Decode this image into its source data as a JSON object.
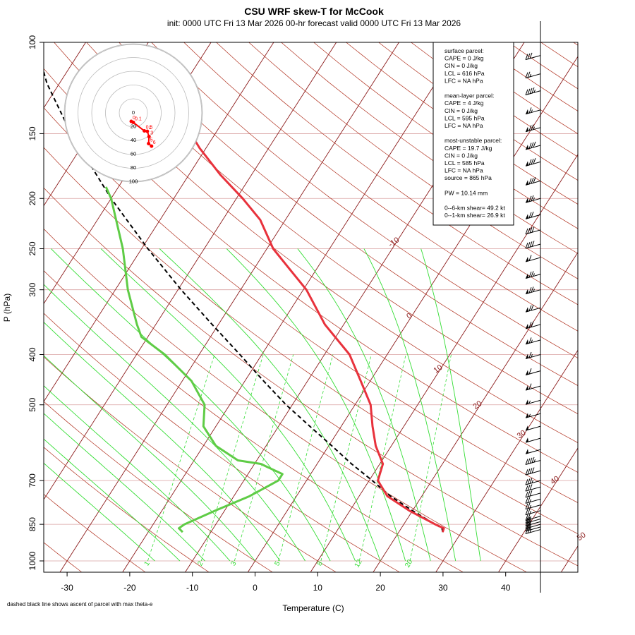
{
  "title": "CSU WRF skew-T for McCook",
  "subtitle": "init: 0000 UTC Fri 13 Mar 2026     00-hr forecast valid 0000 UTC Fri 13 Mar 2026",
  "footnote": "dashed black line shows ascent of parcel with max theta-e",
  "info_box": {
    "lines": [
      "surface parcel:",
      "CAPE = 0 J/kg",
      "CIN = 0 J/kg",
      "LCL = 616 hPa",
      "LFC = NA hPa",
      "",
      "mean-layer parcel:",
      "CAPE = 4 J/kg",
      "CIN = 0 J/kg",
      "LCL = 595 hPa",
      "LFC = NA hPa",
      "",
      "most-unstable parcel:",
      "CAPE = 19.7 J/kg",
      "CIN = 0 J/kg",
      "LCL = 585 hPa",
      "LFC = NA hPa",
      "source = 865 hPa",
      "",
      "PW =  10.14 mm",
      "",
      "0--6-km shear= 49.2 kt",
      "0--1-km shear= 26.9 kt"
    ]
  },
  "colors": {
    "temperature": "#e8323c",
    "dewpoint": "#5fcc46",
    "parcel": "#000000",
    "isotherm": "#8b1a1a",
    "dry_adiabat": "#b0301e",
    "moist_adiabat": "#33dd33",
    "mixing_ratio": "#33dd33",
    "grid": "#d9a0a0",
    "hodograph": "#ff0000"
  },
  "chart_data": {
    "type": "line",
    "xlabel": "Temperature (C)",
    "ylabel": "P (hPa)",
    "x_ticks": [
      -30,
      -20,
      -10,
      0,
      10,
      20,
      30,
      40
    ],
    "y_ticks": [
      100,
      150,
      200,
      250,
      300,
      400,
      500,
      700,
      850,
      1000
    ],
    "xlim": [
      -33,
      45
    ],
    "ylim": [
      1050,
      100
    ],
    "log_pressure": true,
    "isotherm_labels": [
      -10,
      0,
      10,
      20,
      30,
      40,
      50
    ],
    "mixing_ratio_labels": [
      1,
      2,
      3,
      5,
      8,
      12,
      20
    ],
    "temperature": {
      "p": [
        880,
        865,
        850,
        800,
        750,
        700,
        650,
        600,
        550,
        500,
        450,
        400,
        350,
        300,
        270,
        250,
        220,
        200,
        180,
        160,
        140,
        120,
        110
      ],
      "t": [
        27,
        26.8,
        25,
        19.5,
        14.5,
        11.4,
        10.5,
        7.5,
        5,
        2.5,
        -1.5,
        -6,
        -13,
        -19.5,
        -25,
        -29,
        -34,
        -39,
        -45,
        -51,
        -57,
        -63,
        -66
      ]
    },
    "dewpoint": {
      "p": [
        880,
        865,
        850,
        800,
        750,
        700,
        680,
        650,
        640,
        600,
        550,
        500,
        450,
        400,
        370,
        350,
        300,
        250,
        200,
        190
      ],
      "td": [
        -14.5,
        -15.5,
        -15,
        -11.5,
        -7.5,
        -4.5,
        -4.5,
        -9,
        -13,
        -18,
        -22,
        -24,
        -28.5,
        -35.5,
        -41,
        -43,
        -48,
        -53,
        -60,
        -62
      ]
    },
    "parcel": {
      "p": [
        880,
        865,
        850,
        800,
        750,
        700,
        650,
        600,
        550,
        500,
        450,
        400,
        350,
        300,
        250,
        200,
        150,
        120,
        100
      ],
      "t": [
        27,
        26.5,
        25,
        20,
        15,
        10.5,
        5.5,
        0.5,
        -5,
        -11,
        -17,
        -23.5,
        -31,
        -39.5,
        -49,
        -60,
        -73,
        -82,
        -88
      ]
    },
    "wind_barbs": [
      {
        "p": 870,
        "spd": 25
      },
      {
        "p": 860,
        "spd": 25
      },
      {
        "p": 850,
        "spd": 25
      },
      {
        "p": 840,
        "spd": 25
      },
      {
        "p": 830,
        "spd": 25
      },
      {
        "p": 820,
        "spd": 25
      },
      {
        "p": 800,
        "spd": 25
      },
      {
        "p": 780,
        "spd": 25
      },
      {
        "p": 760,
        "spd": 25
      },
      {
        "p": 740,
        "spd": 30
      },
      {
        "p": 720,
        "spd": 30
      },
      {
        "p": 700,
        "spd": 35
      },
      {
        "p": 670,
        "spd": 40
      },
      {
        "p": 640,
        "spd": 45
      },
      {
        "p": 610,
        "spd": 50
      },
      {
        "p": 580,
        "spd": 50
      },
      {
        "p": 550,
        "spd": 50
      },
      {
        "p": 520,
        "spd": 55
      },
      {
        "p": 490,
        "spd": 55
      },
      {
        "p": 460,
        "spd": 60
      },
      {
        "p": 430,
        "spd": 60
      },
      {
        "p": 400,
        "spd": 65
      },
      {
        "p": 375,
        "spd": 65
      },
      {
        "p": 350,
        "spd": 70
      },
      {
        "p": 325,
        "spd": 70
      },
      {
        "p": 300,
        "spd": 75
      },
      {
        "p": 280,
        "spd": 75
      },
      {
        "p": 260,
        "spd": 60
      },
      {
        "p": 245,
        "spd": 40
      },
      {
        "p": 230,
        "spd": 40
      },
      {
        "p": 215,
        "spd": 70
      },
      {
        "p": 200,
        "spd": 75
      },
      {
        "p": 185,
        "spd": 80
      },
      {
        "p": 170,
        "spd": 80
      },
      {
        "p": 158,
        "spd": 80
      },
      {
        "p": 146,
        "spd": 75
      },
      {
        "p": 135,
        "spd": 65
      },
      {
        "p": 124,
        "spd": 45
      },
      {
        "p": 115,
        "spd": 25
      },
      {
        "p": 106,
        "spd": 30
      }
    ],
    "hodograph": {
      "ring_labels": [
        0,
        20,
        40,
        60,
        80,
        100
      ],
      "points": [
        {
          "label": "0",
          "u": -0.1,
          "v": 0.4
        },
        {
          "label": "0.1",
          "u": 0.0,
          "v": 0.45
        },
        {
          "label": "0.5",
          "u": 0.52,
          "v": 0.85
        },
        {
          "label": "1",
          "u": 0.66,
          "v": 0.87
        },
        {
          "label": "3",
          "u": 0.74,
          "v": 1.12
        },
        {
          "label": "5",
          "u": 0.72,
          "v": 1.45
        },
        {
          "label": "6",
          "u": 0.86,
          "v": 1.57
        }
      ]
    }
  }
}
